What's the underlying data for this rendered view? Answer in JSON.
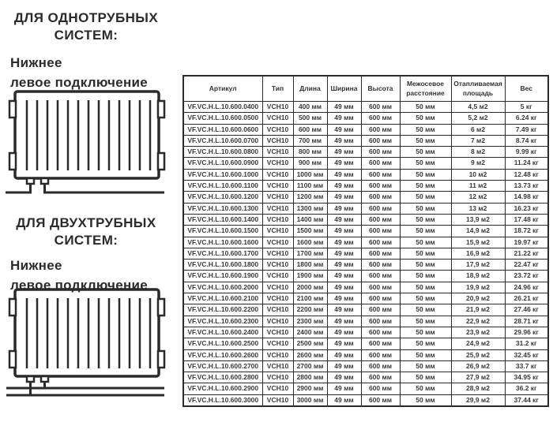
{
  "sections": [
    {
      "heading": "ДЛЯ ОДНОТРУБНЫХ\nСИСТЕМ:",
      "subheading": "Нижнее\nлевое подключение"
    },
    {
      "heading": "ДЛЯ ДВУХТРУБНЫХ\nСИСТЕМ:",
      "subheading": "Нижнее\nлевое подключение"
    }
  ],
  "table": {
    "headers": [
      "Артикул",
      "Тип",
      "Длина",
      "Ширина",
      "Высота",
      "Межосевое\nрасстояние",
      "Отапливаемая\nплощадь",
      "Вес"
    ],
    "rows": [
      [
        "VF.VC.H.L.10.600.0400",
        "VCH10",
        "400 мм",
        "49 мм",
        "600 мм",
        "50 мм",
        "4,5 м2",
        "5 кг"
      ],
      [
        "VF.VC.H.L.10.600.0500",
        "VCH10",
        "500 мм",
        "49 мм",
        "600 мм",
        "50 мм",
        "5,2 м2",
        "6.24 кг"
      ],
      [
        "VF.VC.H.L.10.600.0600",
        "VCH10",
        "600 мм",
        "49 мм",
        "600 мм",
        "50 мм",
        "6 м2",
        "7.49 кг"
      ],
      [
        "VF.VC.H.L.10.600.0700",
        "VCH10",
        "700 мм",
        "49 мм",
        "600 мм",
        "50 мм",
        "7 м2",
        "8.74 кг"
      ],
      [
        "VF.VC.H.L.10.600.0800",
        "VCH10",
        "800 мм",
        "49 мм",
        "600 мм",
        "50 мм",
        "8 м2",
        "9.99 кг"
      ],
      [
        "VF.VC.H.L.10.600.0900",
        "VCH10",
        "900 мм",
        "49 мм",
        "600 мм",
        "50 мм",
        "9 м2",
        "11.24 кг"
      ],
      [
        "VF.VC.H.L.10.600.1000",
        "VCH10",
        "1000 мм",
        "49 мм",
        "600 мм",
        "50 мм",
        "10 м2",
        "12.48 кг"
      ],
      [
        "VF.VC.H.L.10.600.1100",
        "VCH10",
        "1100 мм",
        "49 мм",
        "600 мм",
        "50 мм",
        "11 м2",
        "13.73 кг"
      ],
      [
        "VF.VC.H.L.10.600.1200",
        "VCH10",
        "1200 мм",
        "49 мм",
        "600 мм",
        "50 мм",
        "12 м2",
        "14.98 кг"
      ],
      [
        "VF.VC.H.L.10.600.1300",
        "VCH10",
        "1300 мм",
        "49 мм",
        "600 мм",
        "50 мм",
        "13 м2",
        "16.23 кг"
      ],
      [
        "VF.VC.H.L.10.600.1400",
        "VCH10",
        "1400 мм",
        "49 мм",
        "600 мм",
        "50 мм",
        "13,9 м2",
        "17.48 кг"
      ],
      [
        "VF.VC.H.L.10.600.1500",
        "VCH10",
        "1500 мм",
        "49 мм",
        "600 мм",
        "50 мм",
        "14,9 м2",
        "18.72 кг"
      ],
      [
        "VF.VC.H.L.10.600.1600",
        "VCH10",
        "1600 мм",
        "49 мм",
        "600 мм",
        "50 мм",
        "15,9 м2",
        "19.97 кг"
      ],
      [
        "VF.VC.H.L.10.600.1700",
        "VCH10",
        "1700 мм",
        "49 мм",
        "600 мм",
        "50 мм",
        "16,9 м2",
        "21.22 кг"
      ],
      [
        "VF.VC.H.L.10.600.1800",
        "VCH10",
        "1800 мм",
        "49 мм",
        "600 мм",
        "50 мм",
        "17,9 м2",
        "22.47 кг"
      ],
      [
        "VF.VC.H.L.10.600.1900",
        "VCH10",
        "1900 мм",
        "49 мм",
        "600 мм",
        "50 мм",
        "18,9 м2",
        "23.72 кг"
      ],
      [
        "VF.VC.H.L.10.600.2000",
        "VCH10",
        "2000 мм",
        "49 мм",
        "600 мм",
        "50 мм",
        "19,9 м2",
        "24.96 кг"
      ],
      [
        "VF.VC.H.L.10.600.2100",
        "VCH10",
        "2100 мм",
        "49 мм",
        "600 мм",
        "50 мм",
        "20,9 м2",
        "26.21 кг"
      ],
      [
        "VF.VC.H.L.10.600.2200",
        "VCH10",
        "2200 мм",
        "49 мм",
        "600 мм",
        "50 мм",
        "21,9 м2",
        "27.46 кг"
      ],
      [
        "VF.VC.H.L.10.600.2300",
        "VCH10",
        "2300 мм",
        "49 мм",
        "600 мм",
        "50 мм",
        "22,9 м2",
        "28.71 кг"
      ],
      [
        "VF.VC.H.L.10.600.2400",
        "VCH10",
        "2400 мм",
        "49 мм",
        "600 мм",
        "50 мм",
        "23,9 м2",
        "29.96 кг"
      ],
      [
        "VF.VC.H.L.10.600.2500",
        "VCH10",
        "2500 мм",
        "49 мм",
        "600 мм",
        "50 мм",
        "24,9 м2",
        "31.2 кг"
      ],
      [
        "VF.VC.H.L.10.600.2600",
        "VCH10",
        "2600 мм",
        "49 мм",
        "600 мм",
        "50 мм",
        "25,9 м2",
        "32.45 кг"
      ],
      [
        "VF.VC.H.L.10.600.2700",
        "VCH10",
        "2700 мм",
        "49 мм",
        "600 мм",
        "50 мм",
        "26,9 м2",
        "33.7 кг"
      ],
      [
        "VF.VC.H.L.10.600.2800",
        "VCH10",
        "2800 мм",
        "49 мм",
        "600 мм",
        "50 мм",
        "27,9 м2",
        "34.95 кг"
      ],
      [
        "VF.VC.H.L.10.600.2900",
        "VCH10",
        "2900 мм",
        "49 мм",
        "600 мм",
        "50 мм",
        "28,9 м2",
        "36.2 кг"
      ],
      [
        "VF.VC.H.L.10.600.3000",
        "VCH10",
        "3000 мм",
        "49 мм",
        "600 мм",
        "50 мм",
        "29,9 м2",
        "37.44 кг"
      ]
    ]
  },
  "colors": {
    "ink": "#2b2b2b",
    "cell_text": "#3a3a3a",
    "background": "#ffffff"
  }
}
